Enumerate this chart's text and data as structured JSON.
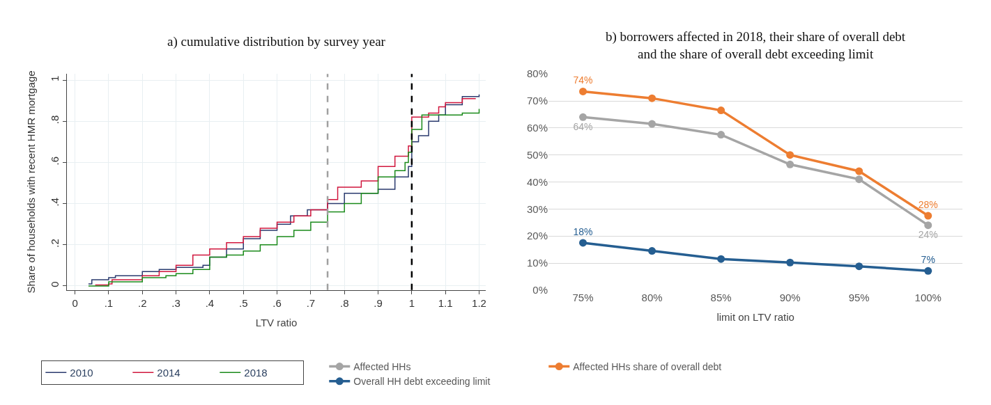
{
  "chart_data": [
    {
      "type": "step",
      "title": "a) cumulative distribution by survey year",
      "xlabel": "LTV ratio",
      "ylabel": "Share of households with recent HMR mortgage",
      "xlim": [
        -0.024,
        1.22
      ],
      "ylim": [
        -0.02,
        1.03
      ],
      "xticks": [
        0,
        {
          "value": 0.1,
          "label": ".1"
        },
        {
          "value": 0.2,
          "label": ".2"
        },
        {
          "value": 0.3,
          "label": ".3"
        },
        {
          "value": 0.4,
          "label": ".4"
        },
        {
          "value": 0.5,
          "label": ".5"
        },
        {
          "value": 0.6,
          "label": ".6"
        },
        {
          "value": 0.7,
          "label": ".7"
        },
        {
          "value": 0.8,
          "label": ".8"
        },
        {
          "value": 0.9,
          "label": ".9"
        },
        1,
        1.1,
        1.2
      ],
      "yticks": [
        0,
        {
          "value": 0.2,
          "label": ".2"
        },
        {
          "value": 0.4,
          "label": ".4"
        },
        {
          "value": 0.6,
          "label": ".6"
        },
        {
          "value": 0.8,
          "label": ".8"
        },
        1
      ],
      "grid": true,
      "legend": "bottom",
      "ref_lines": [
        {
          "axis": "x",
          "value": 0.75,
          "color": "#a0a0a0",
          "line_style": "dashed"
        },
        {
          "axis": "x",
          "value": 1,
          "color": "#000000",
          "line_style": "dashed"
        }
      ],
      "series": [
        {
          "name": "2010",
          "color": "#2a3a6e",
          "x": [
            0.04,
            0.05,
            0.1,
            0.12,
            0.2,
            0.25,
            0.3,
            0.38,
            0.4,
            0.45,
            0.5,
            0.55,
            0.6,
            0.64,
            0.69,
            0.75,
            0.8,
            0.88,
            0.9,
            0.95,
            0.99,
            1.0,
            1.02,
            1.05,
            1.08,
            1.1,
            1.15,
            1.2
          ],
          "values": [
            0.01,
            0.03,
            0.04,
            0.05,
            0.07,
            0.08,
            0.09,
            0.1,
            0.14,
            0.18,
            0.23,
            0.27,
            0.3,
            0.34,
            0.37,
            0.4,
            0.45,
            0.45,
            0.47,
            0.53,
            0.58,
            0.7,
            0.73,
            0.8,
            0.83,
            0.88,
            0.92,
            0.93
          ]
        },
        {
          "name": "2014",
          "color": "#d0163d",
          "x": [
            0.06,
            0.1,
            0.11,
            0.2,
            0.25,
            0.3,
            0.35,
            0.4,
            0.45,
            0.5,
            0.55,
            0.6,
            0.65,
            0.7,
            0.75,
            0.78,
            0.85,
            0.9,
            0.95,
            0.99,
            1.0,
            1.05,
            1.08,
            1.1,
            1.15,
            1.19
          ],
          "values": [
            0.005,
            0.01,
            0.03,
            0.05,
            0.07,
            0.1,
            0.15,
            0.18,
            0.21,
            0.24,
            0.28,
            0.31,
            0.34,
            0.37,
            0.42,
            0.48,
            0.51,
            0.58,
            0.63,
            0.68,
            0.82,
            0.84,
            0.87,
            0.89,
            0.91,
            0.91
          ]
        },
        {
          "name": "2018",
          "color": "#1a8a1a",
          "x": [
            0.04,
            0.1,
            0.2,
            0.27,
            0.3,
            0.35,
            0.4,
            0.45,
            0.5,
            0.55,
            0.6,
            0.65,
            0.7,
            0.75,
            0.8,
            0.85,
            0.9,
            0.95,
            0.98,
            0.99,
            1.0,
            1.03,
            1.1,
            1.15,
            1.2
          ],
          "values": [
            0.0,
            0.02,
            0.04,
            0.05,
            0.06,
            0.08,
            0.14,
            0.15,
            0.17,
            0.2,
            0.24,
            0.27,
            0.31,
            0.36,
            0.4,
            0.45,
            0.53,
            0.56,
            0.6,
            0.65,
            0.76,
            0.83,
            0.83,
            0.84,
            0.86
          ]
        }
      ]
    },
    {
      "type": "line",
      "title": "b) borrowers affected in 2018, their share of overall debt\nand the share of overall debt exceeding limit",
      "xlabel": "limit on LTV ratio",
      "categories": [
        "75%",
        "80%",
        "85%",
        "90%",
        "95%",
        "100%"
      ],
      "ylim": [
        0,
        80
      ],
      "yticks": [
        {
          "value": 0,
          "label": "0%"
        },
        {
          "value": 10,
          "label": "10%"
        },
        {
          "value": 20,
          "label": "20%"
        },
        {
          "value": 30,
          "label": "30%"
        },
        {
          "value": 40,
          "label": "40%"
        },
        {
          "value": 50,
          "label": "50%"
        },
        {
          "value": 60,
          "label": "60%"
        },
        {
          "value": 70,
          "label": "70%"
        },
        {
          "value": 80,
          "label": "80%"
        }
      ],
      "grid": "y",
      "legend": "bottom",
      "marker": "circle",
      "series": [
        {
          "name": "Affected HHs",
          "color": "#a5a5a5",
          "values": [
            64,
            61.5,
            57.5,
            46.5,
            41,
            24
          ],
          "value_labels": [
            "64%",
            null,
            null,
            null,
            null,
            "24%"
          ]
        },
        {
          "name": "Affected HHs share of overall debt",
          "color": "#ed7d31",
          "values": [
            73.5,
            71,
            66.5,
            50,
            44,
            27.5
          ],
          "value_labels": [
            "74%",
            null,
            null,
            null,
            null,
            "28%"
          ]
        },
        {
          "name": "Overall HH debt exceeding limit",
          "color": "#255e91",
          "values": [
            17.5,
            14.5,
            11.5,
            10.2,
            8.8,
            7.1
          ],
          "value_labels": [
            "18%",
            null,
            null,
            null,
            null,
            "7%"
          ]
        }
      ]
    }
  ]
}
